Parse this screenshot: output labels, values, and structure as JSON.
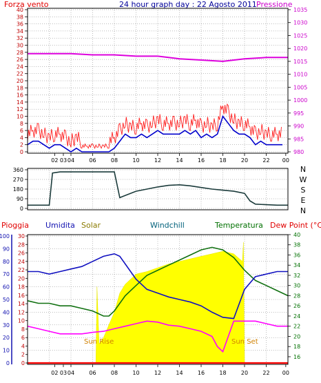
{
  "colors": {
    "wind": "#e00000",
    "gust": "#ff2020",
    "windavg": "#0000cc",
    "pressure": "#dd00dd",
    "direction": "#1a3a3a",
    "humidity": "#1010c0",
    "solar": "#ffff00",
    "temperature": "#107010",
    "dewpoint": "#ff00ff",
    "rain": "#ff0000",
    "sunlabel": "#d08000",
    "grid": "#7a7a7a",
    "axis": "#000000",
    "tickleft": "#c00000",
    "tickright": "#cc00cc",
    "green": "#007000",
    "blue": "#1010b0",
    "olive": "#8a7a00",
    "windchill": "#00607a"
  },
  "chart_data": [
    {
      "type": "line",
      "title": "24 hour graph day : 22 Agosto 2011",
      "series": [
        {
          "name": "Forza vento",
          "axis": "left",
          "x": [
            0,
            0.5,
            1,
            1.5,
            2,
            2.5,
            3,
            3.5,
            4,
            4.5,
            5,
            5.5,
            6,
            6.5,
            7,
            7.5,
            8,
            8.5,
            9,
            9.5,
            10,
            10.5,
            11,
            11.5,
            12,
            12.5,
            13,
            13.5,
            14,
            14.5,
            15,
            15.5,
            16,
            16.5,
            17,
            17.5,
            18,
            18.5,
            19,
            19.5,
            20,
            20.5,
            21,
            21.5,
            22,
            22.5,
            23,
            23.5
          ],
          "values": [
            2,
            3,
            3,
            2,
            1,
            2,
            2,
            1,
            0,
            1,
            0,
            0,
            0,
            0,
            0,
            0,
            1,
            3,
            5,
            4,
            4,
            5,
            4,
            5,
            6,
            5,
            5,
            5,
            5,
            6,
            5,
            6,
            4,
            5,
            4,
            5,
            10,
            8,
            6,
            5,
            5,
            4,
            2,
            3,
            2,
            2,
            2,
            2
          ]
        },
        {
          "name": "Pressione",
          "axis": "right",
          "x": [
            0,
            2,
            4,
            6,
            8,
            10,
            12,
            14,
            16,
            18,
            20,
            22,
            24
          ],
          "values": [
            1018,
            1018,
            1018,
            1017.5,
            1017.5,
            1017,
            1017,
            1016,
            1015.5,
            1015,
            1016,
            1016.5,
            1016.5
          ]
        }
      ],
      "y_left_ticks": [
        0,
        2,
        4,
        6,
        8,
        10,
        12,
        14,
        16,
        18,
        20,
        22,
        24,
        26,
        28,
        30,
        32,
        34,
        36,
        38,
        40
      ],
      "y_right_ticks": [
        980,
        985,
        990,
        995,
        1000,
        1005,
        1010,
        1015,
        1020,
        1025,
        1030,
        1035
      ],
      "ylim_left": [
        0,
        40
      ],
      "ylim_right": [
        980,
        1035
      ],
      "x_ticks": [
        "02",
        "03",
        "04",
        "06",
        "08",
        "10",
        "12",
        "14",
        "16",
        "18",
        "20",
        "22",
        "00"
      ],
      "grid": true
    },
    {
      "type": "line",
      "series": [
        {
          "name": "Direzione",
          "x": [
            0,
            1,
            2,
            2.3,
            3,
            5,
            8,
            8.5,
            9,
            10,
            11,
            12,
            13,
            14,
            15,
            16,
            17,
            18,
            19,
            20,
            20.5,
            21,
            22,
            23,
            24
          ],
          "values": [
            30,
            30,
            30,
            330,
            340,
            340,
            340,
            100,
            120,
            160,
            180,
            200,
            215,
            220,
            210,
            195,
            180,
            170,
            160,
            140,
            70,
            40,
            35,
            30,
            30
          ]
        }
      ],
      "y_ticks": [
        0,
        90,
        180,
        270,
        360
      ],
      "ylim": [
        0,
        360
      ],
      "compass": [
        "N",
        "W",
        "S",
        "E",
        "N"
      ],
      "grid": true
    },
    {
      "type": "line",
      "series": [
        {
          "name": "Umidita",
          "axis": "left",
          "x": [
            0,
            1,
            2,
            3,
            4,
            5,
            6,
            7,
            8,
            8.5,
            9,
            10,
            11,
            12,
            13,
            14,
            15,
            16,
            17,
            18,
            19,
            20,
            21,
            22,
            23,
            24
          ],
          "values": [
            72,
            72,
            70,
            72,
            74,
            76,
            80,
            84,
            86,
            84,
            78,
            66,
            58,
            55,
            52,
            50,
            48,
            45,
            40,
            36,
            35,
            58,
            68,
            70,
            72,
            72
          ]
        },
        {
          "name": "Solar",
          "axis": "left",
          "x": [
            0,
            6.3,
            6.4,
            6.6,
            7,
            7.5,
            8,
            8.5,
            9,
            10,
            11,
            12,
            13,
            14,
            15,
            16,
            17,
            18,
            19,
            19.8,
            19.9,
            20.0,
            24
          ],
          "values": [
            0,
            0,
            60,
            15,
            20,
            30,
            40,
            55,
            62,
            70,
            72,
            75,
            78,
            80,
            82,
            84,
            86,
            88,
            86,
            80,
            95,
            0,
            0
          ]
        },
        {
          "name": "Temperatura",
          "axis": "right",
          "x": [
            0,
            1,
            2,
            3,
            4,
            5,
            6,
            7,
            7.5,
            8,
            9,
            10,
            11,
            12,
            13,
            14,
            15,
            16,
            17,
            18,
            19,
            20,
            21,
            22,
            23,
            24
          ],
          "values": [
            27,
            26.5,
            26.5,
            26,
            26,
            25.5,
            25,
            24,
            24,
            25,
            28,
            30,
            32,
            33,
            34,
            35,
            36,
            37,
            37.5,
            37,
            35.5,
            33,
            31,
            30,
            29,
            28
          ]
        },
        {
          "name": "Dew Point",
          "axis": "right",
          "x": [
            0,
            1,
            2,
            3,
            4,
            5,
            6,
            7,
            8,
            9,
            10,
            11,
            12,
            13,
            14,
            15,
            16,
            17,
            17.5,
            18,
            18.5,
            19,
            20,
            21,
            22,
            23,
            24
          ],
          "values": [
            22,
            21.5,
            21,
            20.5,
            20.5,
            20.5,
            20.8,
            21,
            21.5,
            22,
            22.5,
            23,
            22.8,
            22.2,
            22,
            21.5,
            21,
            20,
            18,
            17,
            20,
            23,
            23,
            23,
            22.5,
            22,
            22
          ]
        },
        {
          "name": "Pioggia",
          "axis": "left",
          "x": [
            0,
            24
          ],
          "values": [
            0,
            0
          ]
        }
      ],
      "legend": [
        "Pioggia",
        "Umidita",
        "Solar",
        "Windchill",
        "Temperatura",
        "Dew Point (°C)"
      ],
      "y_left_ticks_outer": [
        0,
        10,
        20,
        30,
        40,
        50,
        60,
        70,
        80,
        90,
        100
      ],
      "y_left_ticks_inner": [
        0,
        2,
        4,
        6,
        8,
        10,
        12,
        14,
        16,
        18,
        20,
        22,
        24,
        26,
        28,
        30
      ],
      "y_right_ticks": [
        16,
        18,
        20,
        22,
        24,
        26,
        28,
        30,
        32,
        34,
        36,
        38,
        40
      ],
      "ylim_left": [
        0,
        100
      ],
      "ylim_right": [
        14.5,
        40
      ],
      "x_ticks": [
        "02",
        "03",
        "04",
        "06",
        "08",
        "10",
        "12",
        "14",
        "16",
        "18",
        "20",
        "22",
        "00"
      ],
      "annotations": [
        "Sun Rise",
        "Sun Set"
      ],
      "grid": true
    }
  ]
}
